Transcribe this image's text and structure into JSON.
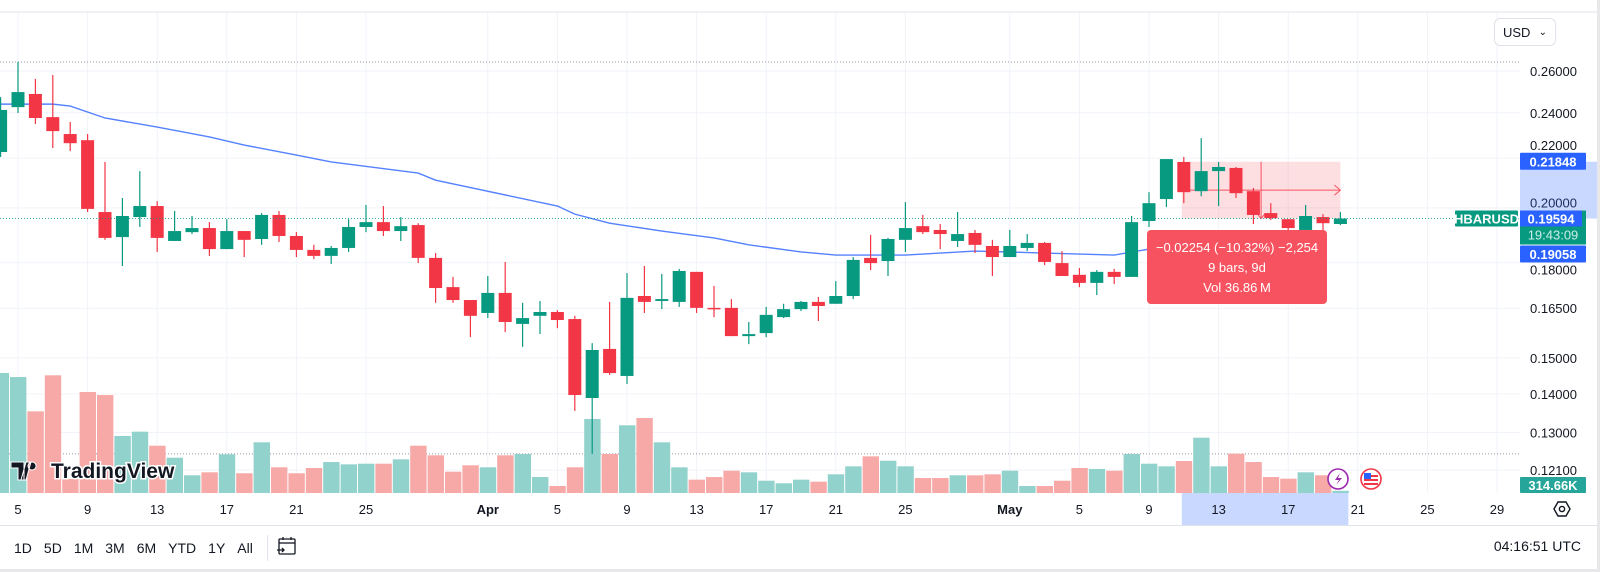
{
  "currency_button": {
    "label": "USD",
    "icon": "chevron-down-icon"
  },
  "symbol_label": "HBARUSD",
  "last_price_label": "0.19594",
  "countdown_label": "19:43:09",
  "range_high_label": "0.21848",
  "range_low_label": "0.19058",
  "volume_label": "314.66K",
  "watermark": "TradingView",
  "measure_tooltip": {
    "line1": "−0.02254 (−10.32%) −2,254",
    "line2": "9 bars, 9d",
    "line3": "Vol 36.86 M"
  },
  "toolbar": {
    "ranges": [
      "1D",
      "5D",
      "1M",
      "3M",
      "6M",
      "YTD",
      "1Y",
      "All"
    ],
    "calendar_icon": "calendar-goto-icon",
    "clock": "04:16:51 UTC"
  },
  "colors": {
    "up": "#089981",
    "down": "#f23645",
    "ma": "#2962ff",
    "measure": "#f7525f",
    "range_label": "#2962ff"
  },
  "chart_data": {
    "type": "candlestick",
    "yscale": "log",
    "ylim": [
      0.119,
      0.274
    ],
    "grid": true,
    "price_ticks": [
      0.26,
      0.24,
      0.22,
      0.2,
      0.18,
      0.165,
      0.15,
      0.14,
      0.13,
      0.121
    ],
    "price_tick_labels": [
      "0.26000",
      "0.24000",
      "0.22000",
      "0.20000",
      "0.18000",
      "0.16500",
      "0.15000",
      "0.14000",
      "0.13000",
      "0.12100"
    ],
    "x_ticks": [
      {
        "label": "5",
        "date": "Mar 5"
      },
      {
        "label": "9",
        "date": "Mar 9"
      },
      {
        "label": "13",
        "date": "Mar 13"
      },
      {
        "label": "17",
        "date": "Mar 17"
      },
      {
        "label": "21",
        "date": "Mar 21"
      },
      {
        "label": "25",
        "date": "Mar 25"
      },
      {
        "label": "Apr",
        "date": "Apr 1",
        "bold": true
      },
      {
        "label": "5",
        "date": "Apr 5"
      },
      {
        "label": "9",
        "date": "Apr 9"
      },
      {
        "label": "13",
        "date": "Apr 13"
      },
      {
        "label": "17",
        "date": "Apr 17"
      },
      {
        "label": "21",
        "date": "Apr 21"
      },
      {
        "label": "25",
        "date": "Apr 25"
      },
      {
        "label": "May",
        "date": "May 1",
        "bold": true
      },
      {
        "label": "5",
        "date": "May 5"
      },
      {
        "label": "9",
        "date": "May 9"
      },
      {
        "label": "13",
        "date": "May 13"
      },
      {
        "label": "17",
        "date": "May 17"
      },
      {
        "label": "21",
        "date": "May 21"
      },
      {
        "label": "25",
        "date": "May 25"
      },
      {
        "label": "29",
        "date": "May 29"
      }
    ],
    "columns": [
      "date",
      "open",
      "high",
      "low",
      "close",
      "volume_M"
    ],
    "candles": [
      [
        "Mar 4",
        0.2226,
        0.2473,
        0.2205,
        0.2413,
        17.28
      ],
      [
        "Mar 5",
        0.2426,
        0.2645,
        0.2399,
        0.2497,
        16.7
      ],
      [
        "Mar 6",
        0.2488,
        0.2561,
        0.2349,
        0.2376,
        11.76
      ],
      [
        "Mar 7",
        0.238,
        0.258,
        0.2243,
        0.2317,
        16.95
      ],
      [
        "Mar 8",
        0.2304,
        0.2358,
        0.223,
        0.2264,
        2.02
      ],
      [
        "Mar 9",
        0.2277,
        0.2304,
        0.1984,
        0.1996,
        14.54
      ],
      [
        "Mar 10",
        0.1984,
        0.2184,
        0.1881,
        0.1888,
        14.11
      ],
      [
        "Mar 11",
        0.1891,
        0.2038,
        0.1789,
        0.1969,
        8.21
      ],
      [
        "Mar 12",
        0.1965,
        0.2146,
        0.1928,
        0.2007,
        8.83
      ],
      [
        "Mar 13",
        0.2007,
        0.2026,
        0.1838,
        0.1888,
        6.81
      ],
      [
        "Mar 14",
        0.1877,
        0.1988,
        0.1877,
        0.1913,
        5.08
      ],
      [
        "Mar 15",
        0.1909,
        0.1969,
        0.1902,
        0.1924,
        2.55
      ],
      [
        "Mar 16",
        0.1924,
        0.1946,
        0.1824,
        0.1848,
        2.98
      ],
      [
        "Mar 17",
        0.1848,
        0.1957,
        0.1848,
        0.1913,
        5.57
      ],
      [
        "Mar 18",
        0.1913,
        0.1913,
        0.182,
        0.1881,
        2.84
      ],
      [
        "Mar 19",
        0.1884,
        0.198,
        0.1863,
        0.1973,
        7.3
      ],
      [
        "Mar 20",
        0.1973,
        0.1988,
        0.1873,
        0.1895,
        3.7
      ],
      [
        "Mar 21",
        0.1895,
        0.1909,
        0.182,
        0.1845,
        2.84
      ],
      [
        "Mar 22",
        0.1845,
        0.1863,
        0.1813,
        0.1824,
        3.6
      ],
      [
        "Mar 23",
        0.1824,
        0.1859,
        0.1796,
        0.1852,
        4.46
      ],
      [
        "Mar 24",
        0.1852,
        0.1957,
        0.1838,
        0.1928,
        4.13
      ],
      [
        "Mar 25",
        0.1928,
        0.2011,
        0.1909,
        0.1946,
        4.22
      ],
      [
        "Mar 26",
        0.1946,
        0.2007,
        0.1895,
        0.1913,
        4.22
      ],
      [
        "Mar 27",
        0.1913,
        0.1965,
        0.1877,
        0.1931,
        4.85
      ],
      [
        "Mar 28",
        0.1935,
        0.1942,
        0.1799,
        0.1817,
        6.81
      ],
      [
        "Mar 29",
        0.1817,
        0.1834,
        0.1667,
        0.1715,
        5.43
      ],
      [
        "Mar 30",
        0.1718,
        0.1752,
        0.1667,
        0.1676,
        3.07
      ],
      [
        "Mar 31",
        0.1676,
        0.1676,
        0.1561,
        0.1626,
        3.99
      ],
      [
        "Apr 1",
        0.1635,
        0.1755,
        0.1619,
        0.1699,
        3.7
      ],
      [
        "Apr 2",
        0.1699,
        0.1803,
        0.1576,
        0.1607,
        5.43
      ],
      [
        "Apr 3",
        0.1601,
        0.1667,
        0.1532,
        0.1619,
        5.62
      ],
      [
        "Apr 4",
        0.1626,
        0.1673,
        0.157,
        0.1638,
        2.3
      ],
      [
        "Apr 5",
        0.1638,
        0.1644,
        0.1588,
        0.1613,
        1.01
      ],
      [
        "Apr 6",
        0.1616,
        0.1626,
        0.1355,
        0.1397,
        3.7
      ],
      [
        "Apr 7",
        0.1389,
        0.1543,
        0.1248,
        0.1523,
        10.66
      ],
      [
        "Apr 8",
        0.1526,
        0.167,
        0.1452,
        0.1457,
        5.62
      ],
      [
        "Apr 9",
        0.1449,
        0.1765,
        0.1427,
        0.1683,
        9.75
      ],
      [
        "Apr 10",
        0.1689,
        0.1789,
        0.1635,
        0.167,
        10.8
      ],
      [
        "Apr 11",
        0.1673,
        0.1762,
        0.1647,
        0.1679,
        7.3
      ],
      [
        "Apr 12",
        0.167,
        0.1779,
        0.1654,
        0.1772,
        3.7
      ],
      [
        "Apr 13",
        0.1769,
        0.1769,
        0.1635,
        0.1651,
        1.92
      ],
      [
        "Apr 14",
        0.1651,
        0.1722,
        0.1622,
        0.1647,
        2.3
      ],
      [
        "Apr 15",
        0.1651,
        0.1679,
        0.1564,
        0.1564,
        3.21
      ],
      [
        "Apr 16",
        0.1564,
        0.1607,
        0.154,
        0.157,
        2.98
      ],
      [
        "Apr 17",
        0.1573,
        0.1654,
        0.1561,
        0.1629,
        1.77
      ],
      [
        "Apr 18",
        0.1622,
        0.1664,
        0.1619,
        0.1647,
        1.4
      ],
      [
        "Apr 19",
        0.1647,
        0.1673,
        0.1641,
        0.167,
        1.92
      ],
      [
        "Apr 20",
        0.167,
        0.1686,
        0.161,
        0.1657,
        1.63
      ],
      [
        "Apr 21",
        0.1664,
        0.1738,
        0.1664,
        0.1689,
        2.69
      ],
      [
        "Apr 22",
        0.1689,
        0.182,
        0.1679,
        0.181,
        3.84
      ],
      [
        "Apr 23",
        0.1817,
        0.1899,
        0.1775,
        0.1799,
        5.28
      ],
      [
        "Apr 24",
        0.1806,
        0.1888,
        0.1755,
        0.1884,
        4.65
      ],
      [
        "Apr 25",
        0.1881,
        0.2022,
        0.1838,
        0.1924,
        3.84
      ],
      [
        "Apr 26",
        0.1931,
        0.1973,
        0.1902,
        0.1909,
        2.16
      ],
      [
        "Apr 27",
        0.1917,
        0.1939,
        0.1848,
        0.1902,
        2.16
      ],
      [
        "Apr 28",
        0.1877,
        0.1984,
        0.1855,
        0.1902,
        2.55
      ],
      [
        "Apr 29",
        0.1906,
        0.1917,
        0.1834,
        0.1863,
        2.55
      ],
      [
        "Apr 30",
        0.1859,
        0.1881,
        0.1755,
        0.182,
        2.69
      ],
      [
        "May 1",
        0.182,
        0.1917,
        0.182,
        0.1859,
        3.21
      ],
      [
        "May 2",
        0.1852,
        0.1902,
        0.1841,
        0.187,
        1.01
      ],
      [
        "May 3",
        0.187,
        0.1873,
        0.1792,
        0.1803,
        1.01
      ],
      [
        "May 4",
        0.1799,
        0.1841,
        0.1755,
        0.1755,
        1.77
      ],
      [
        "May 5",
        0.1759,
        0.1782,
        0.1718,
        0.1732,
        3.6
      ],
      [
        "May 6",
        0.1732,
        0.1775,
        0.1692,
        0.1769,
        3.46
      ],
      [
        "May 7",
        0.1769,
        0.1779,
        0.1728,
        0.1752,
        3.21
      ],
      [
        "May 8",
        0.1752,
        0.1969,
        0.1752,
        0.1946,
        5.62
      ],
      [
        "May 9",
        0.195,
        0.2061,
        0.1928,
        0.2018,
        4.22
      ],
      [
        "May 10",
        0.2034,
        0.2196,
        0.2003,
        0.2196,
        3.84
      ],
      [
        "May 11",
        0.2184,
        0.2205,
        0.2018,
        0.2061,
        4.61
      ],
      [
        "May 12",
        0.2065,
        0.2286,
        0.2045,
        0.2146,
        7.96
      ],
      [
        "May 13",
        0.2146,
        0.2184,
        0.2007,
        0.2163,
        3.84
      ],
      [
        "May 14",
        0.2159,
        0.2163,
        0.2038,
        0.2057,
        5.66
      ],
      [
        "May 15",
        0.2065,
        0.2078,
        0.1939,
        0.1973,
        4.46
      ],
      [
        "May 16",
        0.198,
        0.2018,
        0.1954,
        0.1961,
        2.3
      ],
      [
        "May 17",
        0.1957,
        0.1957,
        0.1909,
        0.1924,
        2.06
      ],
      [
        "May 18",
        0.1917,
        0.2011,
        0.1909,
        0.1969,
        2.98
      ],
      [
        "May 19",
        0.1965,
        0.1976,
        0.1917,
        0.1942,
        2.55
      ],
      [
        "May 20",
        0.1939,
        0.1984,
        0.1935,
        0.19594,
        0.31466
      ]
    ],
    "moving_average": [
      [
        "Mar 4",
        0.244
      ],
      [
        "Mar 7",
        0.244
      ],
      [
        "Mar 8",
        0.2431
      ],
      [
        "Mar 10",
        0.2376
      ],
      [
        "Mar 13",
        0.2335
      ],
      [
        "Mar 16",
        0.2291
      ],
      [
        "Mar 18",
        0.2256
      ],
      [
        "Mar 21",
        0.2213
      ],
      [
        "Mar 23",
        0.2184
      ],
      [
        "Mar 28",
        0.2138
      ],
      [
        "Mar 29",
        0.2109
      ],
      [
        "Apr 5",
        0.2007
      ],
      [
        "Apr 6",
        0.1976
      ],
      [
        "Apr 8",
        0.1942
      ],
      [
        "Apr 11",
        0.1913
      ],
      [
        "Apr 14",
        0.1888
      ],
      [
        "Apr 16",
        0.1863
      ],
      [
        "Apr 19",
        0.1838
      ],
      [
        "Apr 21",
        0.1827
      ],
      [
        "Apr 25",
        0.1827
      ],
      [
        "Apr 29",
        0.1841
      ],
      [
        "May 3",
        0.1834
      ],
      [
        "May 7",
        0.1827
      ],
      [
        "May 9",
        0.1848
      ],
      [
        "May 10",
        0.1859
      ]
    ],
    "measurement": {
      "from_date": "May 11",
      "to_date": "May 20",
      "from_price": 0.21848,
      "to_price": 0.19594
    },
    "last_price": 0.19594,
    "highest_high": 0.2645,
    "lowest_low": 0.1248
  }
}
